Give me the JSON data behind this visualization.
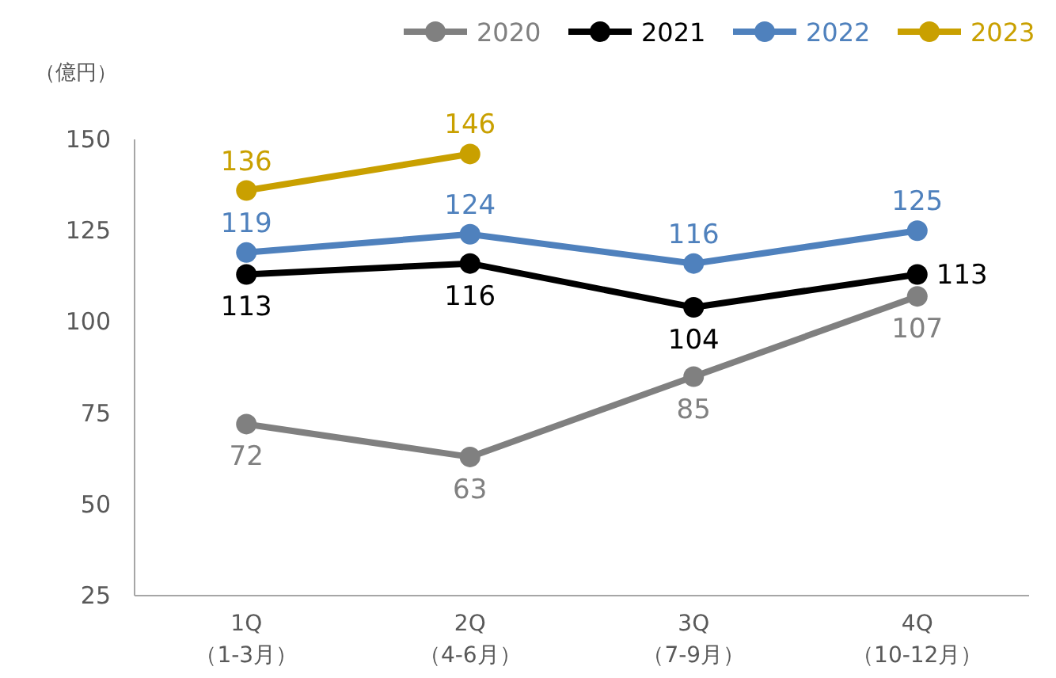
{
  "chart_data": {
    "type": "line",
    "ylabel": "（億円）",
    "categories": [
      "1Q\n（1-3月）",
      "2Q\n（4-6月）",
      "3Q\n（7-9月）",
      "4Q\n（10-12月）"
    ],
    "series": [
      {
        "name": "2020",
        "color": "#808080",
        "values": [
          72,
          63,
          85,
          107
        ]
      },
      {
        "name": "2021",
        "color": "#000000",
        "values": [
          113,
          116,
          104,
          113
        ]
      },
      {
        "name": "2022",
        "color": "#4f81bd",
        "values": [
          119,
          124,
          116,
          125
        ]
      },
      {
        "name": "2023",
        "color": "#c9a000",
        "values": [
          136,
          146,
          null,
          null
        ]
      }
    ],
    "ylim": [
      25,
      150
    ],
    "yticks": [
      25,
      50,
      75,
      100,
      125,
      150
    ],
    "grid": false,
    "legend": "top right",
    "marker": "circle",
    "line_style": "solid",
    "data_labels": true
  }
}
